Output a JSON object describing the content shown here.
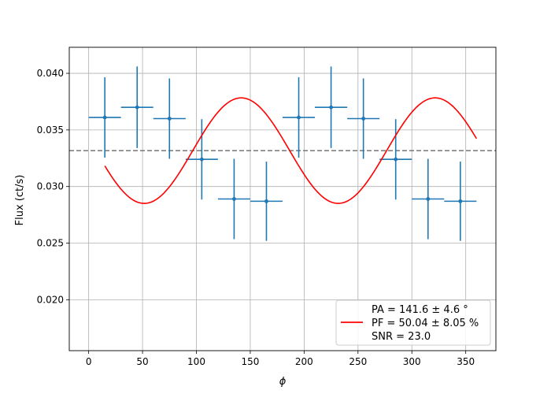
{
  "chart_data": {
    "type": "scatter",
    "title": "",
    "xlabel": "ϕ",
    "ylabel": "Flux (ct/s)",
    "xlim": [
      -18,
      378
    ],
    "ylim": [
      0.0155,
      0.0423
    ],
    "x_ticks": [
      0,
      50,
      100,
      150,
      200,
      250,
      300,
      350
    ],
    "y_ticks": [
      0.02,
      0.025,
      0.03,
      0.035,
      0.04
    ],
    "grid": true,
    "legend_position": "bottom-right",
    "legend": {
      "lines": [
        "PA = 141.6 ± 4.6 °",
        "PF = 50.04 ± 8.05 %",
        "SNR = 23.0"
      ]
    },
    "data_points": {
      "color": "#1f77b4",
      "x": [
        15,
        45,
        75,
        105,
        135,
        165,
        195,
        225,
        255,
        285,
        315,
        345
      ],
      "y": [
        0.0361,
        0.037,
        0.036,
        0.0324,
        0.0289,
        0.0287,
        0.0361,
        0.037,
        0.036,
        0.0324,
        0.0289,
        0.0287
      ],
      "xerr": [
        15,
        15,
        15,
        15,
        15,
        15,
        15,
        15,
        15,
        15,
        15,
        15
      ],
      "yerr": [
        0.00355,
        0.0036,
        0.00355,
        0.00355,
        0.00355,
        0.0035,
        0.00355,
        0.0036,
        0.00355,
        0.00355,
        0.00355,
        0.0035
      ]
    },
    "fit_curve": {
      "color": "#ff0000",
      "x_range": [
        15,
        360
      ],
      "mean": 0.03317,
      "amplitude": 0.00466,
      "angle_deg": 141.6,
      "period_deg": 180
    },
    "mean_line": {
      "y": 0.03317,
      "color": "#808080",
      "style": "dashed"
    }
  }
}
